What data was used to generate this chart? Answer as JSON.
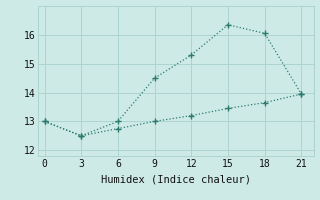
{
  "xlabel": "Humidex (Indice chaleur)",
  "ylabel": "",
  "background_color": "#ceeae6",
  "grid_color": "#aed4cf",
  "line_color": "#2a7a6e",
  "xlim": [
    -0.5,
    22
  ],
  "ylim": [
    11.8,
    17.0
  ],
  "xticks": [
    0,
    3,
    6,
    9,
    12,
    15,
    18,
    21
  ],
  "yticks": [
    12,
    13,
    14,
    15,
    16
  ],
  "line1_x": [
    0,
    3,
    6,
    9,
    12,
    15,
    18,
    21
  ],
  "line1_y": [
    13.0,
    12.5,
    13.0,
    14.5,
    15.3,
    16.35,
    16.05,
    13.95
  ],
  "line2_x": [
    0,
    3,
    6,
    9,
    12,
    15,
    18,
    21
  ],
  "line2_y": [
    13.0,
    12.5,
    12.75,
    13.0,
    13.2,
    13.45,
    13.65,
    13.95
  ]
}
